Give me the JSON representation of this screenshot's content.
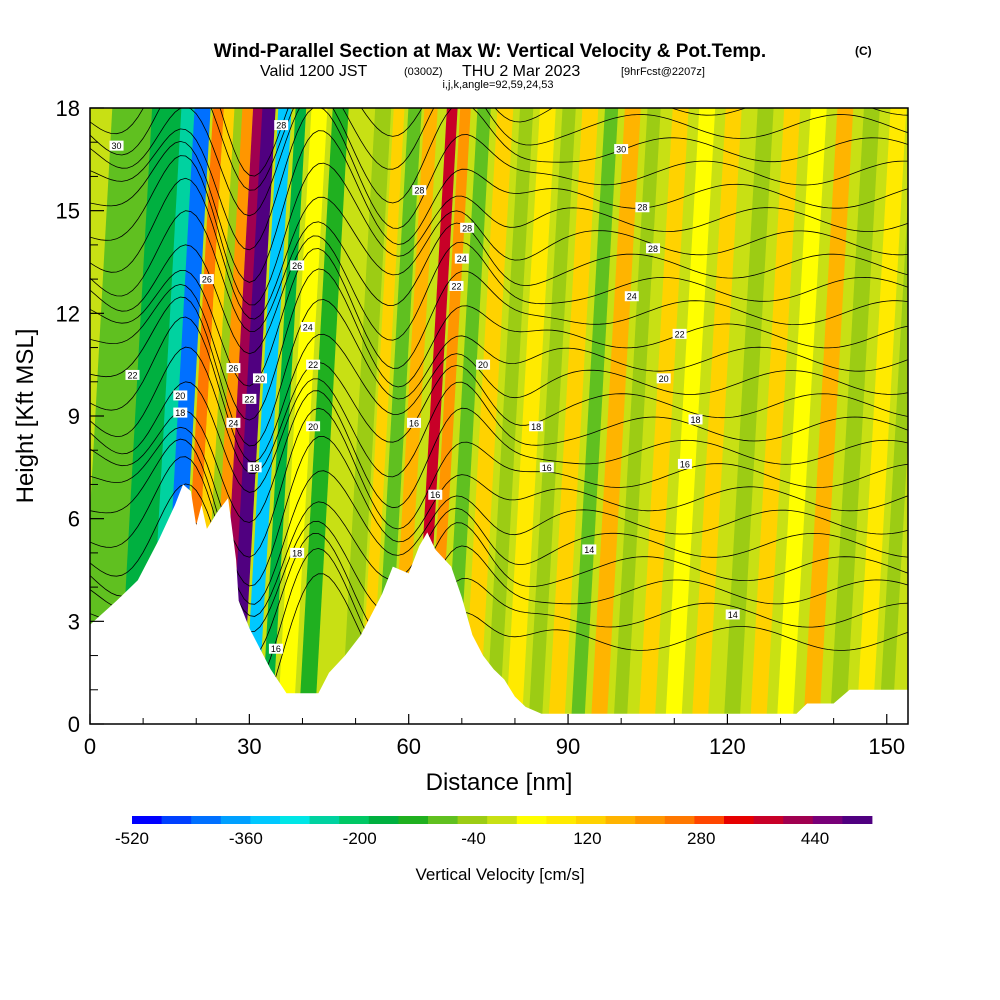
{
  "chart_data": {
    "type": "heatmap",
    "title": "Wind-Parallel Section at Max W: Vertical Velocity & Pot.Temp.",
    "title_mark": "(C)",
    "subtitle_a": "Valid 1200 JST",
    "subtitle_b": "(0300Z)",
    "subtitle_c": "THU 2 Mar 2023",
    "subtitle_d": "[9hrFcst@2207z]",
    "params": "i,j,k,angle=92,59,24,53",
    "xlabel": "Distance [nm]",
    "ylabel": "Height [Kft MSL]",
    "xlim": [
      0,
      154
    ],
    "ylim": [
      0,
      18
    ],
    "xticks": [
      "0",
      "30",
      "60",
      "90",
      "120",
      "150"
    ],
    "xtick_values": [
      0,
      30,
      60,
      90,
      120,
      150
    ],
    "yticks": [
      "0",
      "3",
      "6",
      "9",
      "12",
      "15",
      "18"
    ],
    "ytick_values": [
      0,
      3,
      6,
      9,
      12,
      15,
      18
    ],
    "colorbar": {
      "label": "Vertical Velocity [cm/s]",
      "tick_labels": [
        "-520",
        "-360",
        "-200",
        "-40",
        "120",
        "280",
        "440"
      ],
      "tick_values": [
        -520,
        -360,
        -200,
        -40,
        120,
        280,
        440
      ],
      "min": -520,
      "max": 520,
      "colors": [
        "#0000ff",
        "#0040ff",
        "#0070ff",
        "#00a0ff",
        "#00c8ff",
        "#00e6e6",
        "#00d2a0",
        "#00c864",
        "#00b040",
        "#20b020",
        "#60c020",
        "#9ccc14",
        "#c8e014",
        "#ffff00",
        "#ffea00",
        "#ffd200",
        "#ffb400",
        "#ff9600",
        "#ff7800",
        "#ff4600",
        "#e60000",
        "#c80028",
        "#a00050",
        "#780078",
        "#500080"
      ]
    },
    "terrain": [
      {
        "x": 0,
        "y": 2.9
      },
      {
        "x": 5,
        "y": 3.6
      },
      {
        "x": 9,
        "y": 4.2
      },
      {
        "x": 13,
        "y": 5.4
      },
      {
        "x": 16,
        "y": 6.4
      },
      {
        "x": 17.5,
        "y": 7.0
      },
      {
        "x": 19,
        "y": 6.8
      },
      {
        "x": 20,
        "y": 5.8
      },
      {
        "x": 21,
        "y": 6.4
      },
      {
        "x": 22,
        "y": 5.7
      },
      {
        "x": 24,
        "y": 6.2
      },
      {
        "x": 26,
        "y": 6.6
      },
      {
        "x": 27.5,
        "y": 4.8
      },
      {
        "x": 28,
        "y": 3.6
      },
      {
        "x": 30,
        "y": 2.8
      },
      {
        "x": 32,
        "y": 2.2
      },
      {
        "x": 34,
        "y": 1.6
      },
      {
        "x": 37,
        "y": 0.9
      },
      {
        "x": 43,
        "y": 0.9
      },
      {
        "x": 45,
        "y": 1.5
      },
      {
        "x": 48,
        "y": 2.0
      },
      {
        "x": 51,
        "y": 2.6
      },
      {
        "x": 53,
        "y": 3.2
      },
      {
        "x": 55,
        "y": 3.8
      },
      {
        "x": 57,
        "y": 4.6
      },
      {
        "x": 60,
        "y": 4.4
      },
      {
        "x": 62,
        "y": 5.2
      },
      {
        "x": 63.5,
        "y": 5.6
      },
      {
        "x": 65,
        "y": 5.1
      },
      {
        "x": 68,
        "y": 4.6
      },
      {
        "x": 70,
        "y": 3.7
      },
      {
        "x": 72,
        "y": 2.6
      },
      {
        "x": 74,
        "y": 2.0
      },
      {
        "x": 76,
        "y": 1.6
      },
      {
        "x": 78,
        "y": 1.3
      },
      {
        "x": 80,
        "y": 0.8
      },
      {
        "x": 82,
        "y": 0.5
      },
      {
        "x": 85,
        "y": 0.3
      },
      {
        "x": 94,
        "y": 0.3
      },
      {
        "x": 122,
        "y": 0.3
      },
      {
        "x": 133,
        "y": 0.3
      },
      {
        "x": 135,
        "y": 0.6
      },
      {
        "x": 140,
        "y": 0.6
      },
      {
        "x": 143,
        "y": 1.0
      },
      {
        "x": 154,
        "y": 1.0
      }
    ],
    "contour_labels": [
      {
        "text": "30",
        "x": 5,
        "y": 16.9
      },
      {
        "text": "30",
        "x": 100,
        "y": 16.8
      },
      {
        "text": "28",
        "x": 36,
        "y": 17.5
      },
      {
        "text": "28",
        "x": 62,
        "y": 15.6
      },
      {
        "text": "28",
        "x": 71,
        "y": 14.5
      },
      {
        "text": "28",
        "x": 104,
        "y": 15.1
      },
      {
        "text": "28",
        "x": 106,
        "y": 13.9
      },
      {
        "text": "26",
        "x": 22,
        "y": 13.0
      },
      {
        "text": "26",
        "x": 39,
        "y": 13.4
      },
      {
        "text": "24",
        "x": 70,
        "y": 13.6
      },
      {
        "text": "24",
        "x": 41,
        "y": 11.6
      },
      {
        "text": "24",
        "x": 102,
        "y": 12.5
      },
      {
        "text": "24",
        "x": 27,
        "y": 8.8
      },
      {
        "text": "22",
        "x": 69,
        "y": 12.8
      },
      {
        "text": "22",
        "x": 42,
        "y": 10.5
      },
      {
        "text": "22",
        "x": 8,
        "y": 10.2
      },
      {
        "text": "22",
        "x": 111,
        "y": 11.4
      },
      {
        "text": "22",
        "x": 30,
        "y": 9.5
      },
      {
        "text": "26",
        "x": 27,
        "y": 10.4
      },
      {
        "text": "20",
        "x": 32,
        "y": 10.1
      },
      {
        "text": "20",
        "x": 17,
        "y": 9.6
      },
      {
        "text": "20",
        "x": 74,
        "y": 10.5
      },
      {
        "text": "20",
        "x": 108,
        "y": 10.1
      },
      {
        "text": "20",
        "x": 42,
        "y": 8.7
      },
      {
        "text": "18",
        "x": 17,
        "y": 9.1
      },
      {
        "text": "18",
        "x": 84,
        "y": 8.7
      },
      {
        "text": "18",
        "x": 114,
        "y": 8.9
      },
      {
        "text": "18",
        "x": 31,
        "y": 7.5
      },
      {
        "text": "18",
        "x": 39,
        "y": 5.0
      },
      {
        "text": "16",
        "x": 61,
        "y": 8.8
      },
      {
        "text": "16",
        "x": 65,
        "y": 6.7
      },
      {
        "text": "16",
        "x": 86,
        "y": 7.5
      },
      {
        "text": "16",
        "x": 112,
        "y": 7.6
      },
      {
        "text": "16",
        "x": 35,
        "y": 2.2
      },
      {
        "text": "14",
        "x": 94,
        "y": 5.1
      },
      {
        "text": "14",
        "x": 121,
        "y": 3.2
      }
    ]
  }
}
